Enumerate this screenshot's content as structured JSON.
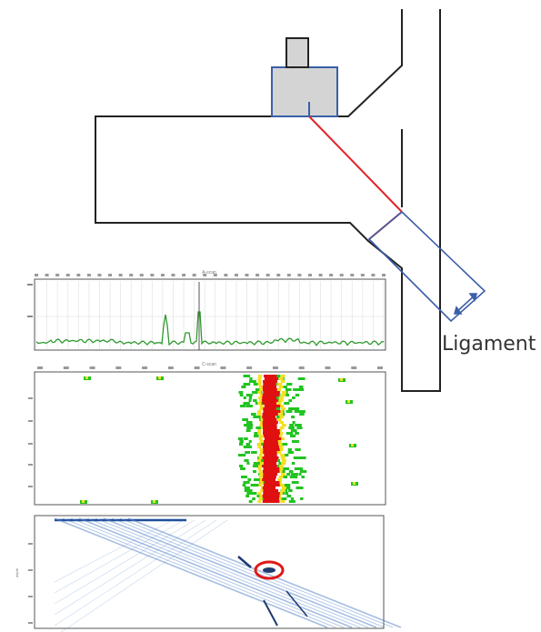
{
  "diagram": {
    "ligament_label": "Ligament",
    "colors": {
      "outline": "#222222",
      "sound_path": "#e0242a",
      "probe": "#3a5fa8",
      "probe_fill": "#d4d4d4",
      "ascan_trace": "#2e9a2e",
      "cscan_hot": "#e01010",
      "cscan_warm": "#f5e020",
      "cscan_cool": "#21c421",
      "bscan_line": "#5a86c8",
      "indication_marker": "#e01818"
    }
  },
  "ascan": {
    "type": "line",
    "tick_count": 34
  },
  "cscan": {
    "type": "heatmap",
    "tick_count": 14
  },
  "bscan": {
    "type": "heatmap"
  }
}
